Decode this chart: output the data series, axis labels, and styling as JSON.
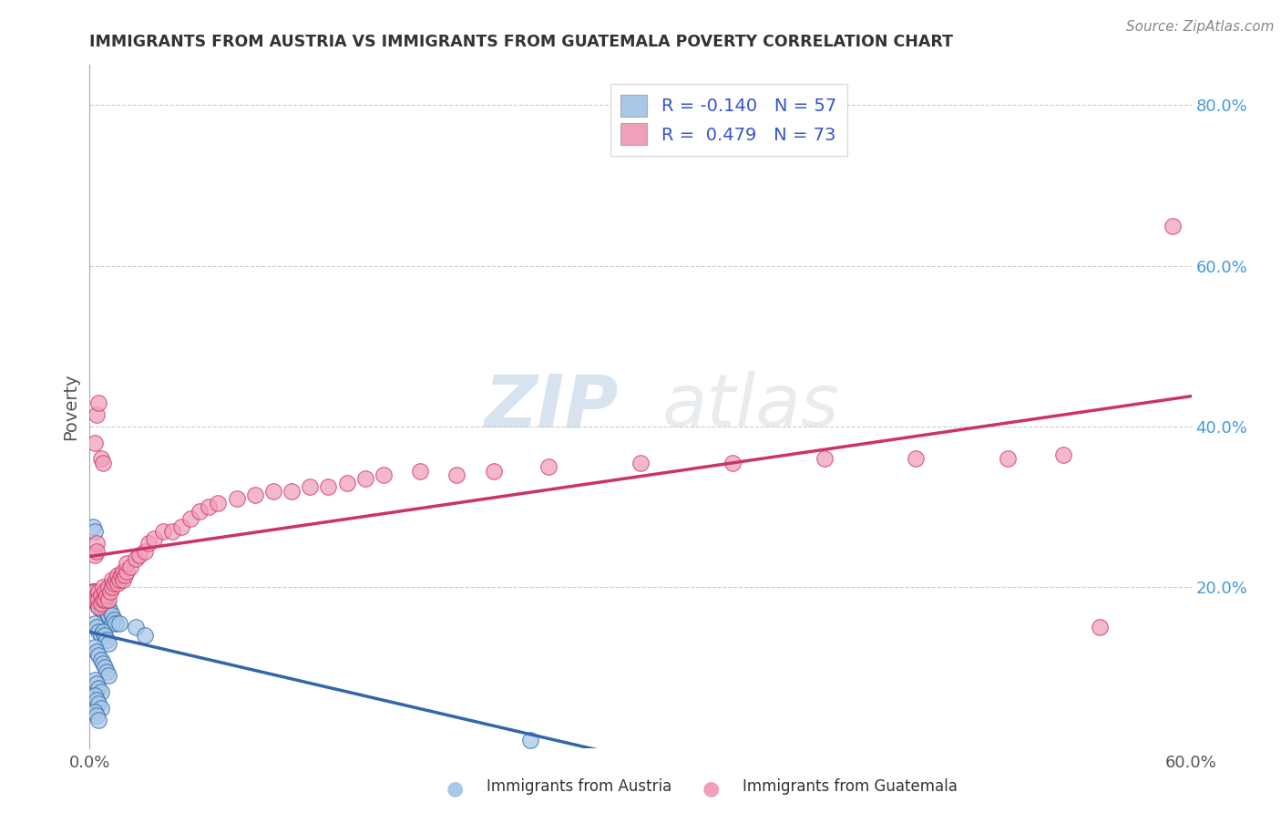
{
  "title": "IMMIGRANTS FROM AUSTRIA VS IMMIGRANTS FROM GUATEMALA POVERTY CORRELATION CHART",
  "source": "Source: ZipAtlas.com",
  "ylabel": "Poverty",
  "xlim": [
    0.0,
    0.6
  ],
  "ylim": [
    0.0,
    0.85
  ],
  "xticks": [
    0.0,
    0.1,
    0.2,
    0.3,
    0.4,
    0.5,
    0.6
  ],
  "xticklabels": [
    "0.0%",
    "",
    "",
    "",
    "",
    "",
    "60.0%"
  ],
  "ytick_right": [
    0.2,
    0.4,
    0.6,
    0.8
  ],
  "ytick_right_labels": [
    "20.0%",
    "40.0%",
    "60.0%",
    "80.0%"
  ],
  "austria_R": -0.14,
  "austria_N": 57,
  "guatemala_R": 0.479,
  "guatemala_N": 73,
  "austria_color": "#a8c8e8",
  "austria_line_color": "#3366aa",
  "guatemala_color": "#f0a0b8",
  "guatemala_line_color": "#cc3366",
  "background_color": "#ffffff",
  "grid_color": "#cccccc",
  "title_color": "#333333",
  "watermark_zip": "ZIP",
  "watermark_atlas": "atlas",
  "legend_R_color": "#3355cc",
  "austria_scatter": [
    [
      0.002,
      0.195
    ],
    [
      0.003,
      0.195
    ],
    [
      0.003,
      0.185
    ],
    [
      0.004,
      0.19
    ],
    [
      0.004,
      0.18
    ],
    [
      0.005,
      0.19
    ],
    [
      0.005,
      0.185
    ],
    [
      0.005,
      0.175
    ],
    [
      0.006,
      0.185
    ],
    [
      0.006,
      0.175
    ],
    [
      0.007,
      0.18
    ],
    [
      0.007,
      0.17
    ],
    [
      0.008,
      0.185
    ],
    [
      0.008,
      0.175
    ],
    [
      0.008,
      0.165
    ],
    [
      0.009,
      0.18
    ],
    [
      0.009,
      0.17
    ],
    [
      0.01,
      0.175
    ],
    [
      0.01,
      0.165
    ],
    [
      0.011,
      0.17
    ],
    [
      0.012,
      0.165
    ],
    [
      0.012,
      0.155
    ],
    [
      0.013,
      0.16
    ],
    [
      0.014,
      0.155
    ],
    [
      0.003,
      0.155
    ],
    [
      0.004,
      0.15
    ],
    [
      0.005,
      0.145
    ],
    [
      0.006,
      0.14
    ],
    [
      0.007,
      0.145
    ],
    [
      0.008,
      0.14
    ],
    [
      0.009,
      0.135
    ],
    [
      0.01,
      0.13
    ],
    [
      0.003,
      0.125
    ],
    [
      0.004,
      0.12
    ],
    [
      0.005,
      0.115
    ],
    [
      0.006,
      0.11
    ],
    [
      0.007,
      0.105
    ],
    [
      0.008,
      0.1
    ],
    [
      0.009,
      0.095
    ],
    [
      0.01,
      0.09
    ],
    [
      0.003,
      0.085
    ],
    [
      0.004,
      0.08
    ],
    [
      0.005,
      0.075
    ],
    [
      0.006,
      0.07
    ],
    [
      0.003,
      0.065
    ],
    [
      0.004,
      0.06
    ],
    [
      0.005,
      0.055
    ],
    [
      0.006,
      0.05
    ],
    [
      0.003,
      0.045
    ],
    [
      0.004,
      0.04
    ],
    [
      0.005,
      0.035
    ],
    [
      0.002,
      0.275
    ],
    [
      0.003,
      0.27
    ],
    [
      0.016,
      0.155
    ],
    [
      0.025,
      0.15
    ],
    [
      0.03,
      0.14
    ],
    [
      0.24,
      0.01
    ]
  ],
  "guatemala_scatter": [
    [
      0.002,
      0.195
    ],
    [
      0.003,
      0.195
    ],
    [
      0.003,
      0.185
    ],
    [
      0.004,
      0.19
    ],
    [
      0.004,
      0.185
    ],
    [
      0.005,
      0.195
    ],
    [
      0.005,
      0.185
    ],
    [
      0.005,
      0.175
    ],
    [
      0.006,
      0.19
    ],
    [
      0.006,
      0.18
    ],
    [
      0.007,
      0.185
    ],
    [
      0.007,
      0.2
    ],
    [
      0.008,
      0.195
    ],
    [
      0.008,
      0.185
    ],
    [
      0.009,
      0.19
    ],
    [
      0.01,
      0.185
    ],
    [
      0.01,
      0.2
    ],
    [
      0.011,
      0.195
    ],
    [
      0.012,
      0.2
    ],
    [
      0.012,
      0.21
    ],
    [
      0.013,
      0.205
    ],
    [
      0.014,
      0.21
    ],
    [
      0.015,
      0.205
    ],
    [
      0.015,
      0.215
    ],
    [
      0.016,
      0.21
    ],
    [
      0.017,
      0.215
    ],
    [
      0.018,
      0.22
    ],
    [
      0.018,
      0.21
    ],
    [
      0.019,
      0.215
    ],
    [
      0.02,
      0.22
    ],
    [
      0.02,
      0.23
    ],
    [
      0.022,
      0.225
    ],
    [
      0.025,
      0.235
    ],
    [
      0.027,
      0.24
    ],
    [
      0.03,
      0.245
    ],
    [
      0.032,
      0.255
    ],
    [
      0.035,
      0.26
    ],
    [
      0.04,
      0.27
    ],
    [
      0.045,
      0.27
    ],
    [
      0.05,
      0.275
    ],
    [
      0.055,
      0.285
    ],
    [
      0.06,
      0.295
    ],
    [
      0.065,
      0.3
    ],
    [
      0.07,
      0.305
    ],
    [
      0.08,
      0.31
    ],
    [
      0.09,
      0.315
    ],
    [
      0.1,
      0.32
    ],
    [
      0.11,
      0.32
    ],
    [
      0.12,
      0.325
    ],
    [
      0.13,
      0.325
    ],
    [
      0.14,
      0.33
    ],
    [
      0.15,
      0.335
    ],
    [
      0.16,
      0.34
    ],
    [
      0.18,
      0.345
    ],
    [
      0.2,
      0.34
    ],
    [
      0.22,
      0.345
    ],
    [
      0.25,
      0.35
    ],
    [
      0.3,
      0.355
    ],
    [
      0.35,
      0.355
    ],
    [
      0.4,
      0.36
    ],
    [
      0.45,
      0.36
    ],
    [
      0.5,
      0.36
    ],
    [
      0.53,
      0.365
    ],
    [
      0.55,
      0.15
    ],
    [
      0.003,
      0.38
    ],
    [
      0.004,
      0.415
    ],
    [
      0.005,
      0.43
    ],
    [
      0.006,
      0.36
    ],
    [
      0.007,
      0.355
    ],
    [
      0.003,
      0.24
    ],
    [
      0.004,
      0.255
    ],
    [
      0.004,
      0.245
    ],
    [
      0.59,
      0.65
    ]
  ]
}
